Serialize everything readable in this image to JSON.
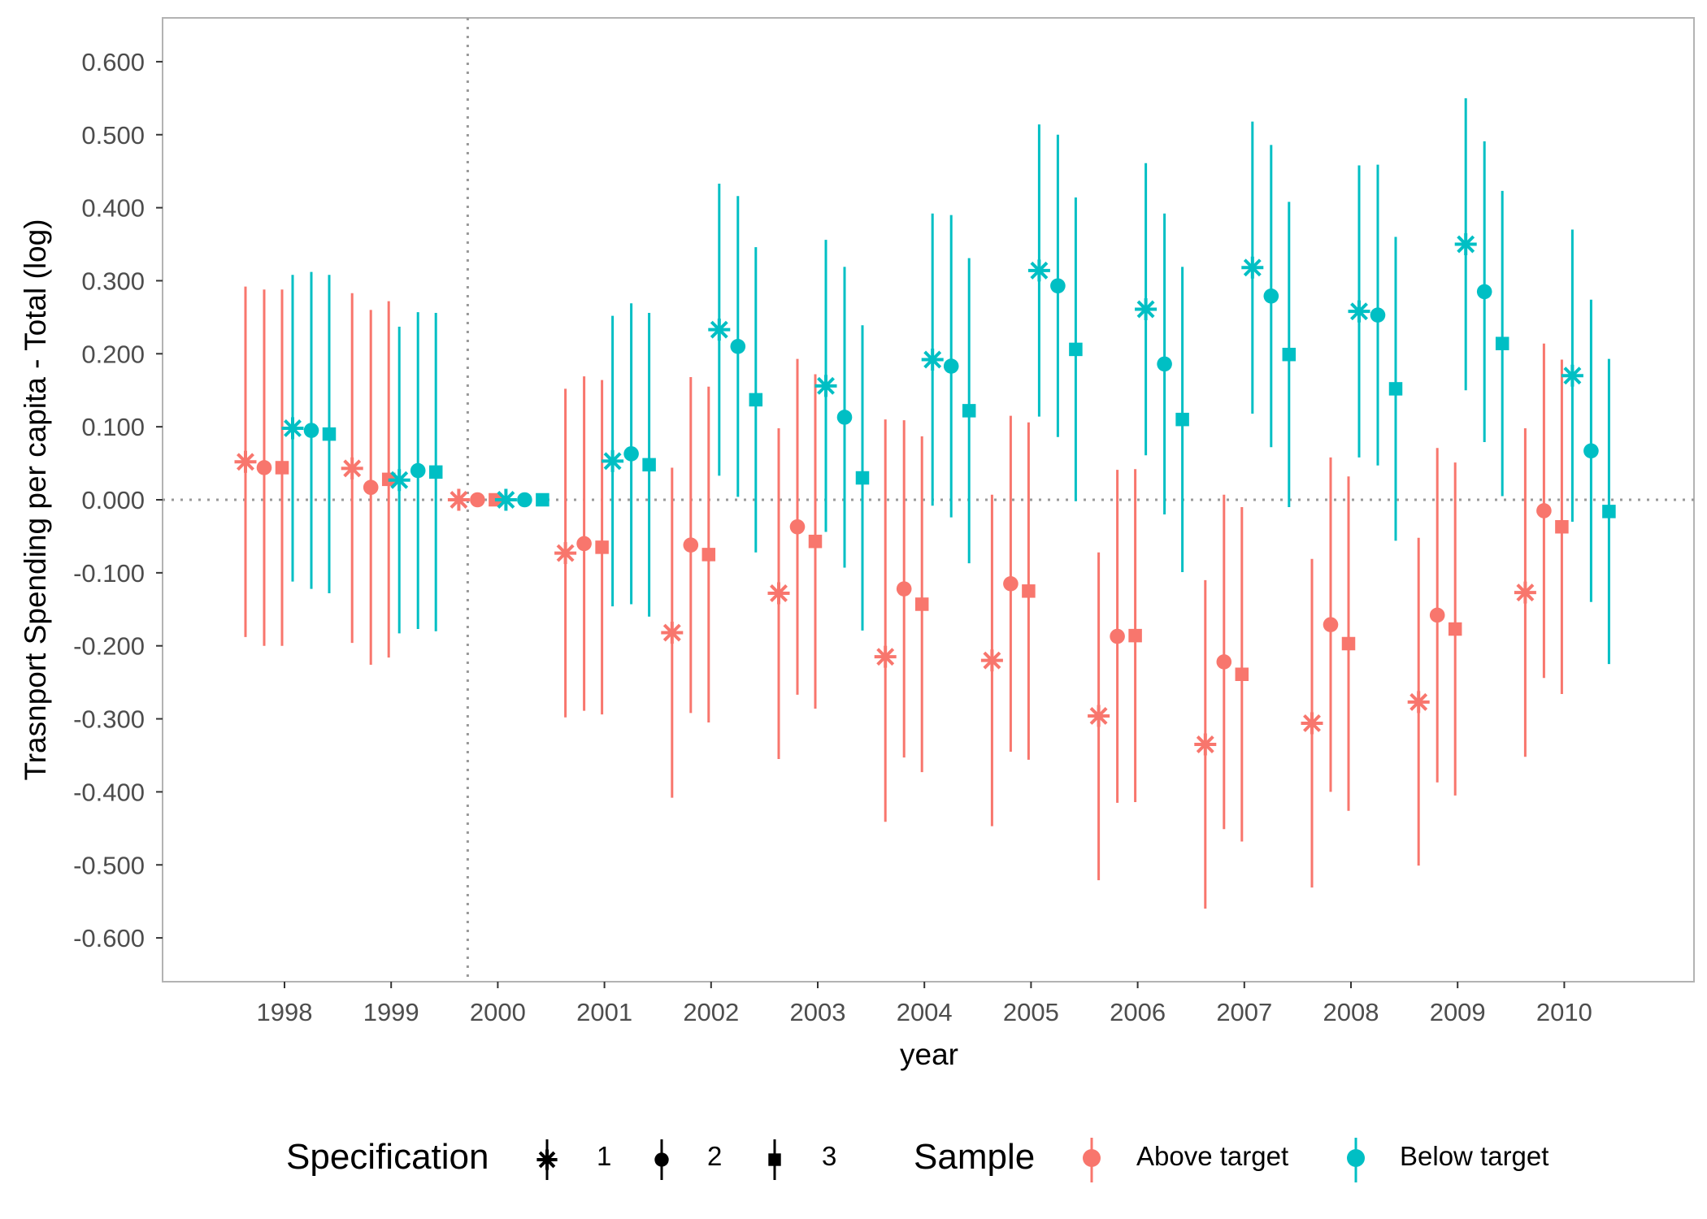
{
  "chart_data": {
    "type": "scatter",
    "subtype": "coefficient plot with confidence intervals",
    "xlabel": "year",
    "ylabel": "Trasnport Spending per capita - Total (log)",
    "x_categories": [
      "1998",
      "1999",
      "2000",
      "2001",
      "2002",
      "2003",
      "2004",
      "2005",
      "2006",
      "2007",
      "2008",
      "2009",
      "2010"
    ],
    "ylim": [
      -0.66,
      0.66
    ],
    "y_ticks": [
      "0.600",
      "0.500",
      "0.400",
      "0.300",
      "0.200",
      "0.100",
      "0.000",
      "-0.100",
      "-0.200",
      "-0.300",
      "-0.400",
      "-0.500",
      "-0.600"
    ],
    "reference_lines": {
      "y": 0,
      "x": "2000",
      "style": "dotted"
    },
    "grid": false,
    "legend_position": "bottom",
    "legend": {
      "specification": {
        "title": "Specification",
        "entries": [
          {
            "label": "1",
            "shape": "asterisk"
          },
          {
            "label": "2",
            "shape": "circle"
          },
          {
            "label": "3",
            "shape": "square"
          }
        ]
      },
      "sample": {
        "title": "Sample",
        "entries": [
          {
            "label": "Above target",
            "color": "#F8766D"
          },
          {
            "label": "Below target",
            "color": "#00BFC4"
          }
        ]
      }
    },
    "series": [
      {
        "sample": "Above target",
        "specification": "1",
        "values": [
          0.052,
          0.043,
          0.0,
          -0.073,
          -0.182,
          -0.128,
          -0.215,
          -0.22,
          -0.296,
          -0.335,
          -0.306,
          -0.277,
          -0.127
        ],
        "ci_low": [
          -0.188,
          -0.196,
          0.0,
          -0.298,
          -0.408,
          -0.355,
          -0.441,
          -0.447,
          -0.521,
          -0.56,
          -0.531,
          -0.501,
          -0.352
        ],
        "ci_high": [
          0.292,
          0.283,
          0.0,
          0.152,
          0.044,
          0.098,
          0.11,
          0.007,
          -0.072,
          -0.11,
          -0.081,
          -0.052,
          0.098
        ]
      },
      {
        "sample": "Above target",
        "specification": "2",
        "values": [
          0.044,
          0.017,
          0.0,
          -0.06,
          -0.062,
          -0.037,
          -0.122,
          -0.115,
          -0.187,
          -0.222,
          -0.171,
          -0.158,
          -0.015
        ],
        "ci_low": [
          -0.2,
          -0.226,
          0.0,
          -0.289,
          -0.292,
          -0.267,
          -0.353,
          -0.345,
          -0.415,
          -0.451,
          -0.4,
          -0.387,
          -0.244
        ],
        "ci_high": [
          0.288,
          0.26,
          0.0,
          0.169,
          0.168,
          0.193,
          0.109,
          0.115,
          0.041,
          0.007,
          0.058,
          0.071,
          0.214
        ]
      },
      {
        "sample": "Above target",
        "specification": "3",
        "values": [
          0.044,
          0.028,
          0.0,
          -0.065,
          -0.075,
          -0.057,
          -0.143,
          -0.125,
          -0.186,
          -0.239,
          -0.197,
          -0.177,
          -0.037
        ],
        "ci_low": [
          -0.2,
          -0.216,
          0.0,
          -0.294,
          -0.305,
          -0.286,
          -0.373,
          -0.356,
          -0.414,
          -0.468,
          -0.426,
          -0.405,
          -0.266
        ],
        "ci_high": [
          0.288,
          0.272,
          0.0,
          0.164,
          0.155,
          0.172,
          0.087,
          0.106,
          0.042,
          -0.01,
          0.032,
          0.051,
          0.192
        ]
      },
      {
        "sample": "Below target",
        "specification": "1",
        "values": [
          0.098,
          0.027,
          0.0,
          0.053,
          0.233,
          0.156,
          0.192,
          0.314,
          0.261,
          0.318,
          0.258,
          0.35,
          0.17
        ],
        "ci_low": [
          -0.112,
          -0.183,
          0.0,
          -0.146,
          0.033,
          -0.044,
          -0.008,
          0.114,
          0.061,
          0.118,
          0.058,
          0.15,
          -0.03
        ],
        "ci_high": [
          0.308,
          0.237,
          0.0,
          0.252,
          0.433,
          0.356,
          0.392,
          0.514,
          0.461,
          0.518,
          0.458,
          0.55,
          0.37
        ]
      },
      {
        "sample": "Below target",
        "specification": "2",
        "values": [
          0.095,
          0.04,
          0.0,
          0.063,
          0.21,
          0.113,
          0.183,
          0.293,
          0.186,
          0.279,
          0.253,
          0.285,
          0.067
        ],
        "ci_low": [
          -0.122,
          -0.177,
          0.0,
          -0.143,
          0.004,
          -0.093,
          -0.024,
          0.086,
          -0.02,
          0.072,
          0.047,
          0.079,
          -0.14
        ],
        "ci_high": [
          0.312,
          0.257,
          0.0,
          0.269,
          0.416,
          0.319,
          0.39,
          0.5,
          0.392,
          0.486,
          0.459,
          0.491,
          0.274
        ]
      },
      {
        "sample": "Below target",
        "specification": "3",
        "values": [
          0.09,
          0.038,
          0.0,
          0.048,
          0.137,
          0.03,
          0.122,
          0.206,
          0.11,
          0.199,
          0.152,
          0.214,
          -0.016
        ],
        "ci_low": [
          -0.128,
          -0.18,
          0.0,
          -0.16,
          -0.072,
          -0.179,
          -0.087,
          -0.002,
          -0.099,
          -0.01,
          -0.056,
          0.005,
          -0.225
        ],
        "ci_high": [
          0.308,
          0.256,
          0.0,
          0.256,
          0.346,
          0.239,
          0.331,
          0.414,
          0.319,
          0.408,
          0.36,
          0.423,
          0.193
        ]
      }
    ]
  }
}
